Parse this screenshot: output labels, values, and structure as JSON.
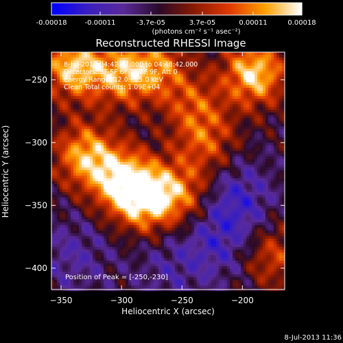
{
  "chart_data": {
    "type": "heatmap",
    "title": "Reconstructed RHESSI Image",
    "xlabel": "Heliocentric X (arcsec)",
    "ylabel": "Heliocentric Y (arcsec)",
    "xlim": [
      -358,
      -165
    ],
    "ylim": [
      -417,
      -228
    ],
    "xticks": [
      -350,
      -300,
      -250,
      -200
    ],
    "yticks": [
      -250,
      -300,
      -350,
      -400
    ],
    "colorbar": {
      "range": [
        -0.00018,
        0.00018
      ],
      "ticks": [
        "-0.00018",
        "-0.00011",
        "-3.7e-05",
        "3.7e-05",
        "0.00011",
        "0.00018"
      ],
      "unit_label": "(photons cm⁻² s⁻¹ asec⁻²)",
      "colors": [
        "#0000ff",
        "#3a1fbf",
        "#5a2a9a",
        "#2a0a2a",
        "#8a1a00",
        "#e03a00",
        "#ffa000",
        "#ffffff"
      ]
    },
    "annotations": [
      "8-Jul-2013 04:42:42.000 to 04:48:42.000",
      "Detectors: 3F 5F 6F 7F 8F 9F, Att 0",
      "Energy Range: 12.0 - 25.0 keV",
      "Clean    Total counts: 1.09E+04"
    ],
    "peak_label": "Position of Peak = [-250,-230]",
    "peak": [
      -250,
      -230
    ],
    "emission_regions": [
      {
        "x": -340,
        "y": -240,
        "strength": 0.9
      },
      {
        "x": -300,
        "y": -245,
        "strength": 0.7
      },
      {
        "x": -270,
        "y": -240,
        "strength": 0.6
      },
      {
        "x": -190,
        "y": -245,
        "strength": 0.95
      },
      {
        "x": -330,
        "y": -310,
        "strength": 0.8
      },
      {
        "x": -300,
        "y": -330,
        "strength": 0.85
      },
      {
        "x": -280,
        "y": -345,
        "strength": 0.9
      },
      {
        "x": -250,
        "y": -340,
        "strength": 0.6
      },
      {
        "x": -230,
        "y": -300,
        "strength": 0.5
      },
      {
        "x": -175,
        "y": -390,
        "strength": 0.5
      },
      {
        "x": -240,
        "y": -270,
        "strength": 0.45
      }
    ],
    "low_regions": [
      {
        "x": -205,
        "y": -345,
        "strength": 0.9
      },
      {
        "x": -220,
        "y": -380,
        "strength": 0.7
      },
      {
        "x": -260,
        "y": -400,
        "strength": 0.5
      },
      {
        "x": -340,
        "y": -390,
        "strength": 0.6
      }
    ]
  },
  "footer": {
    "timestamp": "8-Jul-2013 11:36"
  }
}
